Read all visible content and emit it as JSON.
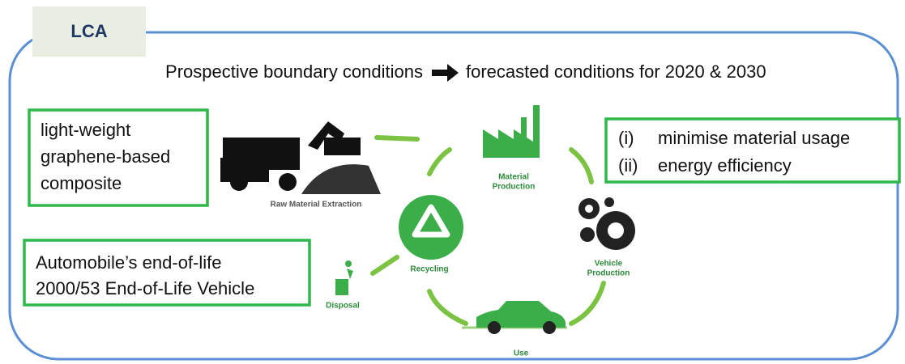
{
  "tab": {
    "label": "LCA"
  },
  "headline": {
    "left": "Prospective boundary conditions",
    "right": "forecasted conditions for 2020 & 2030"
  },
  "material_box": {
    "lines": [
      "light-weight",
      "graphene-based",
      "composite"
    ]
  },
  "goals_box": {
    "items": [
      {
        "marker": "(i)",
        "text": "minimise material usage"
      },
      {
        "marker": "(ii)",
        "text": "energy efficiency"
      }
    ]
  },
  "eol_box": {
    "lines": [
      "Automobile’s end-of-life",
      "2000/53 End-of-Life Vehicle"
    ]
  },
  "cycle": {
    "stages": [
      {
        "lines": [
          "Raw Material Extraction"
        ]
      },
      {
        "lines": [
          "Material",
          "Production"
        ]
      },
      {
        "lines": [
          "Vehicle",
          "Production"
        ]
      },
      {
        "lines": [
          "Use"
        ]
      },
      {
        "lines": [
          "Recycling"
        ]
      },
      {
        "lines": [
          "Disposal"
        ]
      }
    ]
  }
}
